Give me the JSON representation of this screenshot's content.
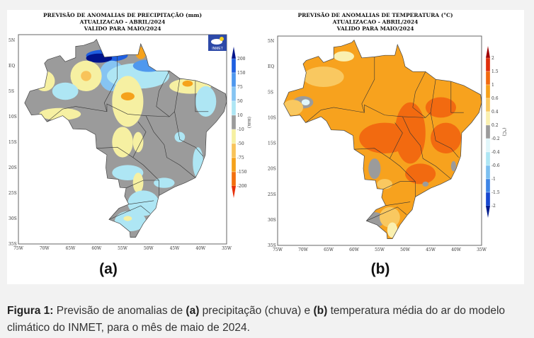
{
  "panels": [
    {
      "id": "a",
      "title_lines": [
        "PREVISÃO DE ANOMALIAS DE PRECIPITAÇÃO (mm)",
        "ATUALIZACAO - ABRIL/2024",
        "VALIDO PARA MAIO/2024"
      ],
      "lat_ticks": [
        "5N",
        "EQ",
        "5S",
        "10S",
        "15S",
        "20S",
        "25S",
        "30S",
        "35S"
      ],
      "lon_ticks": [
        "75W",
        "70W",
        "65W",
        "60W",
        "55W",
        "50W",
        "45W",
        "40W",
        "35W"
      ],
      "colorbar": {
        "unit": "(mm)",
        "labels": [
          "200",
          "150",
          "75",
          "50",
          "10",
          "-10",
          "-50",
          "-75",
          "-150",
          "-200"
        ],
        "colors": [
          "#00148c",
          "#1f5fe0",
          "#4f98ee",
          "#86c4f2",
          "#aee6f4",
          "#9b9b9b",
          "#f6f0a2",
          "#f8c35a",
          "#f5a21c",
          "#f3700f",
          "#e8300a"
        ]
      },
      "logo": "INMET",
      "panel_label": "(a)"
    },
    {
      "id": "b",
      "title_lines": [
        "PREVISÃO DE ANOMALIAS DE TEMPERATURA (°C)",
        "ATUALIZACAO - ABRIL/2024",
        "VALIDO PARA MAIO/2024"
      ],
      "lat_ticks": [
        "5N",
        "EQ",
        "5S",
        "10S",
        "15S",
        "20S",
        "25S",
        "30S",
        "35S"
      ],
      "lon_ticks": [
        "75W",
        "70W",
        "65W",
        "60W",
        "55W",
        "50W",
        "45W",
        "40W",
        "35W"
      ],
      "colorbar": {
        "unit": "(°C)",
        "labels": [
          "2",
          "1.5",
          "1",
          "0.6",
          "0.4",
          "0.2",
          "-0.2",
          "-0.4",
          "-0.6",
          "-1",
          "-1.5",
          "-2"
        ],
        "colors": [
          "#a00000",
          "#e0300c",
          "#f26a10",
          "#f6a21c",
          "#f9c860",
          "#faf0b0",
          "#9b9b9b",
          "#e0f6fa",
          "#aee6f4",
          "#7cc0f0",
          "#3f86e6",
          "#1848d0",
          "#001a8c"
        ]
      },
      "panel_label": "(b)"
    }
  ],
  "map_colors": {
    "precip_base": "#9b9b9b",
    "temp_base": "#f7a21e"
  },
  "caption": {
    "figure_label": "Figura 1:",
    "part1": " Previsão de anomalias de ",
    "a": "(a)",
    "part2": " precipitação (chuva) e ",
    "b": "(b)",
    "part3": " temperatura média do ar do modelo climático do INMET, para o mês de maio de 2024."
  }
}
